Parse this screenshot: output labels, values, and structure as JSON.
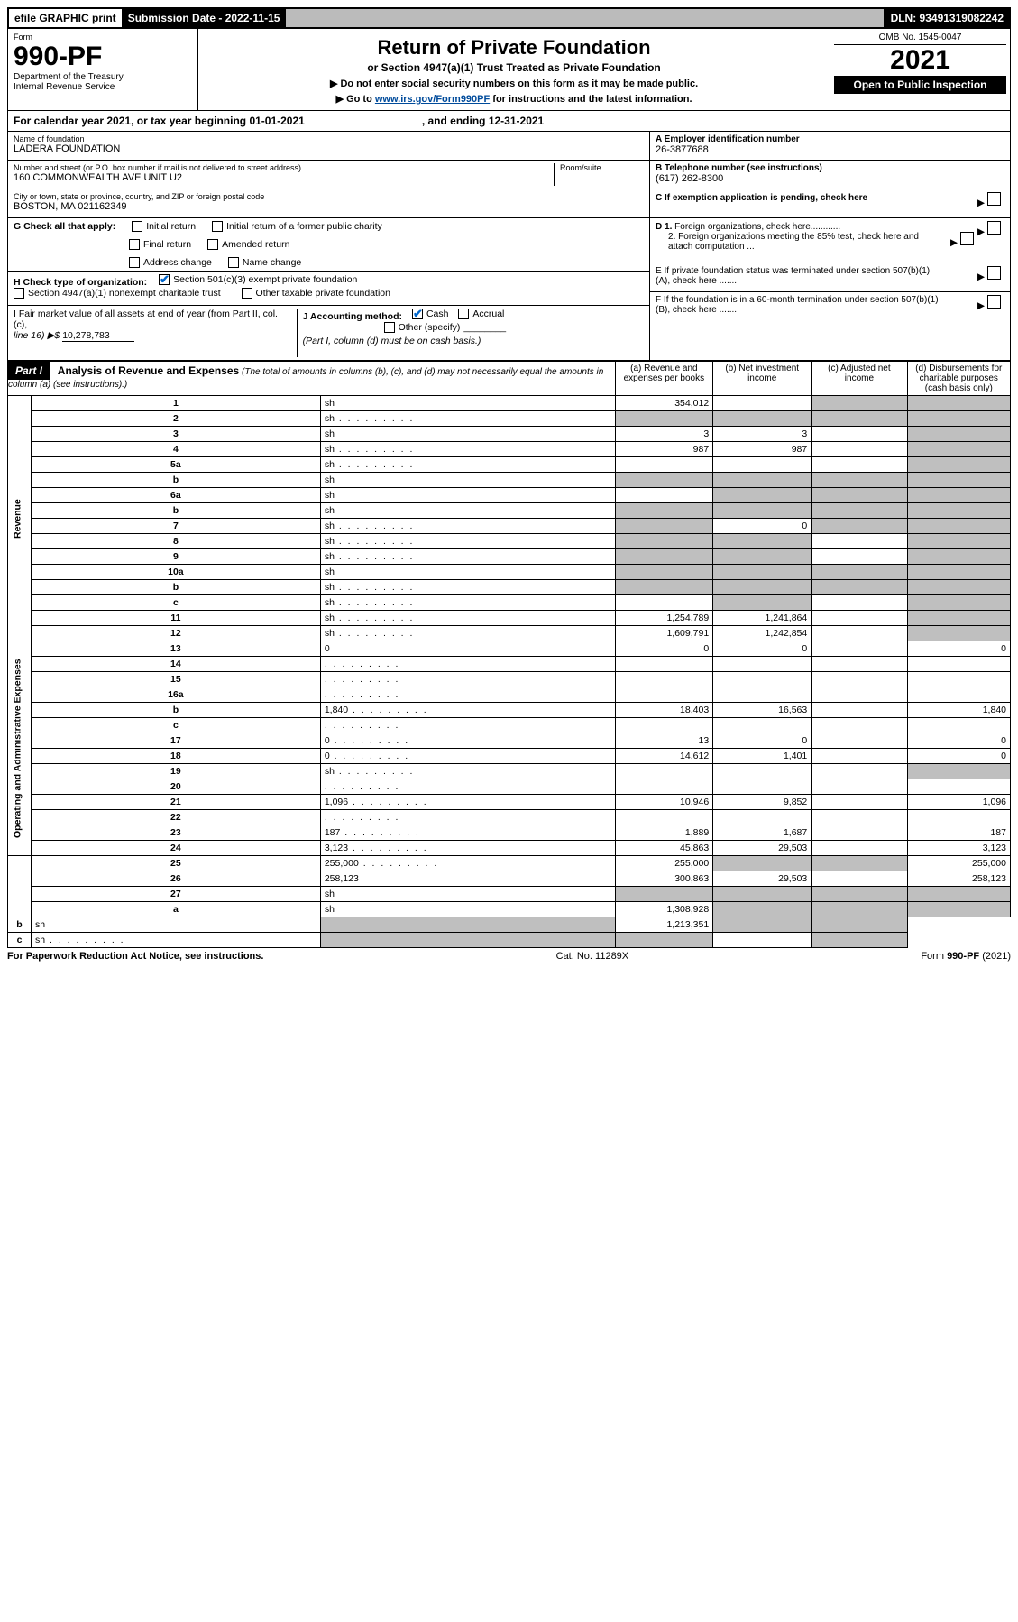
{
  "topbar": {
    "efile": "efile GRAPHIC print",
    "submission_label": "Submission Date - 2022-11-15",
    "dln": "DLN: 93491319082242"
  },
  "header": {
    "form_word": "Form",
    "form_no": "990-PF",
    "dept1": "Department of the Treasury",
    "dept2": "Internal Revenue Service",
    "title": "Return of Private Foundation",
    "subtitle": "or Section 4947(a)(1) Trust Treated as Private Foundation",
    "instr1": "▶ Do not enter social security numbers on this form as it may be made public.",
    "instr2_pre": "▶ Go to ",
    "instr2_link": "www.irs.gov/Form990PF",
    "instr2_post": " for instructions and the latest information.",
    "omb": "OMB No. 1545-0047",
    "year": "2021",
    "open": "Open to Public Inspection"
  },
  "cal": {
    "text_a": "For calendar year 2021, or tax year beginning 01-01-2021",
    "text_b": ", and ending 12-31-2021"
  },
  "info": {
    "name_lbl": "Name of foundation",
    "name_val": "LADERA FOUNDATION",
    "addr_lbl": "Number and street (or P.O. box number if mail is not delivered to street address)",
    "addr_val": "160 COMMONWEALTH AVE UNIT U2",
    "room_lbl": "Room/suite",
    "city_lbl": "City or town, state or province, country, and ZIP or foreign postal code",
    "city_val": "BOSTON, MA  021162349",
    "a_lbl": "A Employer identification number",
    "a_val": "26-3877688",
    "b_lbl": "B Telephone number (see instructions)",
    "b_val": "(617) 262-8300",
    "c_lbl": "C If exemption application is pending, check here",
    "d1_lbl": "D 1. Foreign organizations, check here............",
    "d2_lbl": "2. Foreign organizations meeting the 85% test, check here and attach computation ...",
    "e_lbl": "E  If private foundation status was terminated under section 507(b)(1)(A), check here .......",
    "f_lbl": "F  If the foundation is in a 60-month termination under section 507(b)(1)(B), check here .......",
    "g_lbl": "G Check all that apply:",
    "g_opts": [
      "Initial return",
      "Initial return of a former public charity",
      "Final return",
      "Amended return",
      "Address change",
      "Name change"
    ],
    "h_lbl": "H Check type of organization:",
    "h_opt1": "Section 501(c)(3) exempt private foundation",
    "h_opt2": "Section 4947(a)(1) nonexempt charitable trust",
    "h_opt3": "Other taxable private foundation",
    "i_lbl_a": "I Fair market value of all assets at end of year (from Part II, col. (c),",
    "i_lbl_b": "line 16) ▶$ ",
    "i_val": "10,278,783",
    "j_lbl": "J Accounting method:",
    "j_cash": "Cash",
    "j_accrual": "Accrual",
    "j_other": "Other (specify)",
    "j_note": "(Part I, column (d) must be on cash basis.)"
  },
  "part1": {
    "hdr": "Part I",
    "title": "Analysis of Revenue and Expenses",
    "title_note": " (The total of amounts in columns (b), (c), and (d) may not necessarily equal the amounts in column (a) (see instructions).)",
    "col_a": "(a)   Revenue and expenses per books",
    "col_b": "(b)   Net investment income",
    "col_c": "(c)   Adjusted net income",
    "col_d": "(d)   Disbursements for charitable purposes (cash basis only)",
    "side_rev": "Revenue",
    "side_exp": "Operating and Administrative Expenses"
  },
  "rows": [
    {
      "n": "1",
      "d": "sh",
      "a": "354,012",
      "b": "",
      "c": "sh"
    },
    {
      "n": "2",
      "d": "sh",
      "dots": true,
      "a": "sh",
      "b": "sh",
      "c": "sh"
    },
    {
      "n": "3",
      "d": "sh",
      "a": "3",
      "b": "3",
      "c": ""
    },
    {
      "n": "4",
      "d": "sh",
      "dots": true,
      "a": "987",
      "b": "987",
      "c": ""
    },
    {
      "n": "5a",
      "d": "sh",
      "dots": true,
      "a": "",
      "b": "",
      "c": ""
    },
    {
      "n": "b",
      "d": "sh",
      "a": "sh",
      "b": "sh",
      "c": "sh"
    },
    {
      "n": "6a",
      "d": "sh",
      "a": "",
      "b": "sh",
      "c": "sh"
    },
    {
      "n": "b",
      "d": "sh",
      "a": "sh",
      "b": "sh",
      "c": "sh"
    },
    {
      "n": "7",
      "d": "sh",
      "dots": true,
      "a": "sh",
      "b": "0",
      "c": "sh"
    },
    {
      "n": "8",
      "d": "sh",
      "dots": true,
      "a": "sh",
      "b": "sh",
      "c": ""
    },
    {
      "n": "9",
      "d": "sh",
      "dots": true,
      "a": "sh",
      "b": "sh",
      "c": ""
    },
    {
      "n": "10a",
      "d": "sh",
      "a": "sh",
      "b": "sh",
      "c": "sh"
    },
    {
      "n": "b",
      "d": "sh",
      "dots": true,
      "a": "sh",
      "b": "sh",
      "c": "sh"
    },
    {
      "n": "c",
      "d": "sh",
      "dots": true,
      "a": "",
      "b": "sh",
      "c": ""
    },
    {
      "n": "11",
      "d": "sh",
      "dots": true,
      "a": "1,254,789",
      "b": "1,241,864",
      "c": ""
    },
    {
      "n": "12",
      "d": "sh",
      "dots": true,
      "a": "1,609,791",
      "b": "1,242,854",
      "c": ""
    },
    {
      "n": "13",
      "d": "0",
      "a": "0",
      "b": "0",
      "c": ""
    },
    {
      "n": "14",
      "d": "",
      "dots": true,
      "a": "",
      "b": "",
      "c": ""
    },
    {
      "n": "15",
      "d": "",
      "dots": true,
      "a": "",
      "b": "",
      "c": ""
    },
    {
      "n": "16a",
      "d": "",
      "dots": true,
      "a": "",
      "b": "",
      "c": ""
    },
    {
      "n": "b",
      "d": "1,840",
      "dots": true,
      "a": "18,403",
      "b": "16,563",
      "c": ""
    },
    {
      "n": "c",
      "d": "",
      "dots": true,
      "a": "",
      "b": "",
      "c": ""
    },
    {
      "n": "17",
      "d": "0",
      "dots": true,
      "a": "13",
      "b": "0",
      "c": ""
    },
    {
      "n": "18",
      "d": "0",
      "dots": true,
      "a": "14,612",
      "b": "1,401",
      "c": ""
    },
    {
      "n": "19",
      "d": "sh",
      "dots": true,
      "a": "",
      "b": "",
      "c": ""
    },
    {
      "n": "20",
      "d": "",
      "dots": true,
      "a": "",
      "b": "",
      "c": ""
    },
    {
      "n": "21",
      "d": "1,096",
      "dots": true,
      "a": "10,946",
      "b": "9,852",
      "c": ""
    },
    {
      "n": "22",
      "d": "",
      "dots": true,
      "a": "",
      "b": "",
      "c": ""
    },
    {
      "n": "23",
      "d": "187",
      "dots": true,
      "a": "1,889",
      "b": "1,687",
      "c": ""
    },
    {
      "n": "24",
      "d": "3,123",
      "dots": true,
      "a": "45,863",
      "b": "29,503",
      "c": ""
    },
    {
      "n": "25",
      "d": "255,000",
      "dots": true,
      "a": "255,000",
      "b": "sh",
      "c": "sh"
    },
    {
      "n": "26",
      "d": "258,123",
      "a": "300,863",
      "b": "29,503",
      "c": ""
    },
    {
      "n": "27",
      "d": "sh",
      "a": "sh",
      "b": "sh",
      "c": "sh"
    },
    {
      "n": "a",
      "d": "sh",
      "a": "1,308,928",
      "b": "sh",
      "c": "sh"
    },
    {
      "n": "b",
      "d": "sh",
      "a": "sh",
      "b": "1,213,351",
      "c": "sh"
    },
    {
      "n": "c",
      "d": "sh",
      "dots": true,
      "a": "sh",
      "b": "sh",
      "c": ""
    }
  ],
  "footer": {
    "left": "For Paperwork Reduction Act Notice, see instructions.",
    "mid": "Cat. No. 11289X",
    "right": "Form 990-PF (2021)"
  }
}
